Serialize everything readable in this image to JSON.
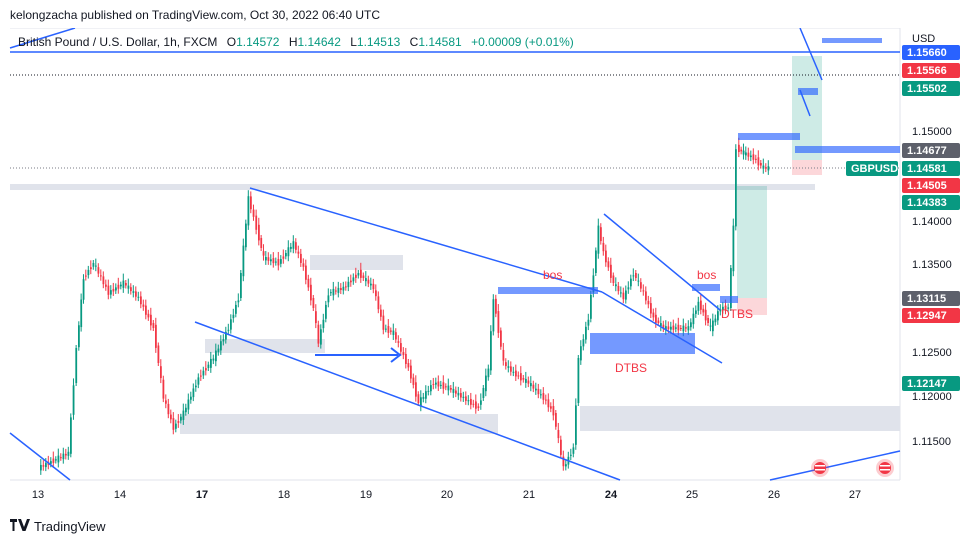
{
  "header": {
    "published_by": "kelongzacha published on TradingView.com, Oct 30, 2022 06:40 UTC"
  },
  "legend": {
    "symbol": "British Pound / U.S. Dollar, 1h, FXCM",
    "o_label": "O",
    "o_value": "1.14572",
    "h_label": "H",
    "h_value": "1.14642",
    "l_label": "L",
    "l_value": "1.14513",
    "c_label": "C",
    "c_value": "1.14581",
    "change": "+0.00009 (+0.01%)"
  },
  "price_axis": {
    "currency": "USD",
    "ticks": [
      "1.15000",
      "1.14000",
      "1.13500",
      "1.12500",
      "1.12000",
      "1.11500"
    ],
    "labels": [
      {
        "text": "1.15660",
        "color": "#2962ff"
      },
      {
        "text": "1.15566",
        "color": "#f23645"
      },
      {
        "text": "1.15502",
        "color": "#089981"
      },
      {
        "text": "1.14677",
        "color": "#5d606b"
      },
      {
        "text": "1.14581",
        "color": "#089981"
      },
      {
        "text": "GBPUSD",
        "color": "#089981"
      },
      {
        "text": "1.14505",
        "color": "#f23645"
      },
      {
        "text": "1.14383",
        "color": "#089981"
      },
      {
        "text": "1.13115",
        "color": "#5d606b"
      },
      {
        "text": "1.12947",
        "color": "#f23645"
      },
      {
        "text": "1.12147",
        "color": "#089981"
      }
    ]
  },
  "time_axis": {
    "labels": [
      "13",
      "14",
      "17",
      "18",
      "19",
      "20",
      "21",
      "24",
      "25",
      "26",
      "27"
    ],
    "bold": [
      "17",
      "24"
    ]
  },
  "annotations": {
    "bos_1": "bos",
    "bos_2": "bos",
    "dtbs_1": "DTBS",
    "dtbs_2": "DTBS"
  },
  "colors": {
    "up": "#089981",
    "down": "#f23645",
    "trendline": "#2962ff",
    "zone_blue": "#2962ff",
    "zone_gray": "#d1d4dc"
  },
  "footer": {
    "brand": "TradingView",
    "logo_icon": "tradingview-logo-icon"
  }
}
